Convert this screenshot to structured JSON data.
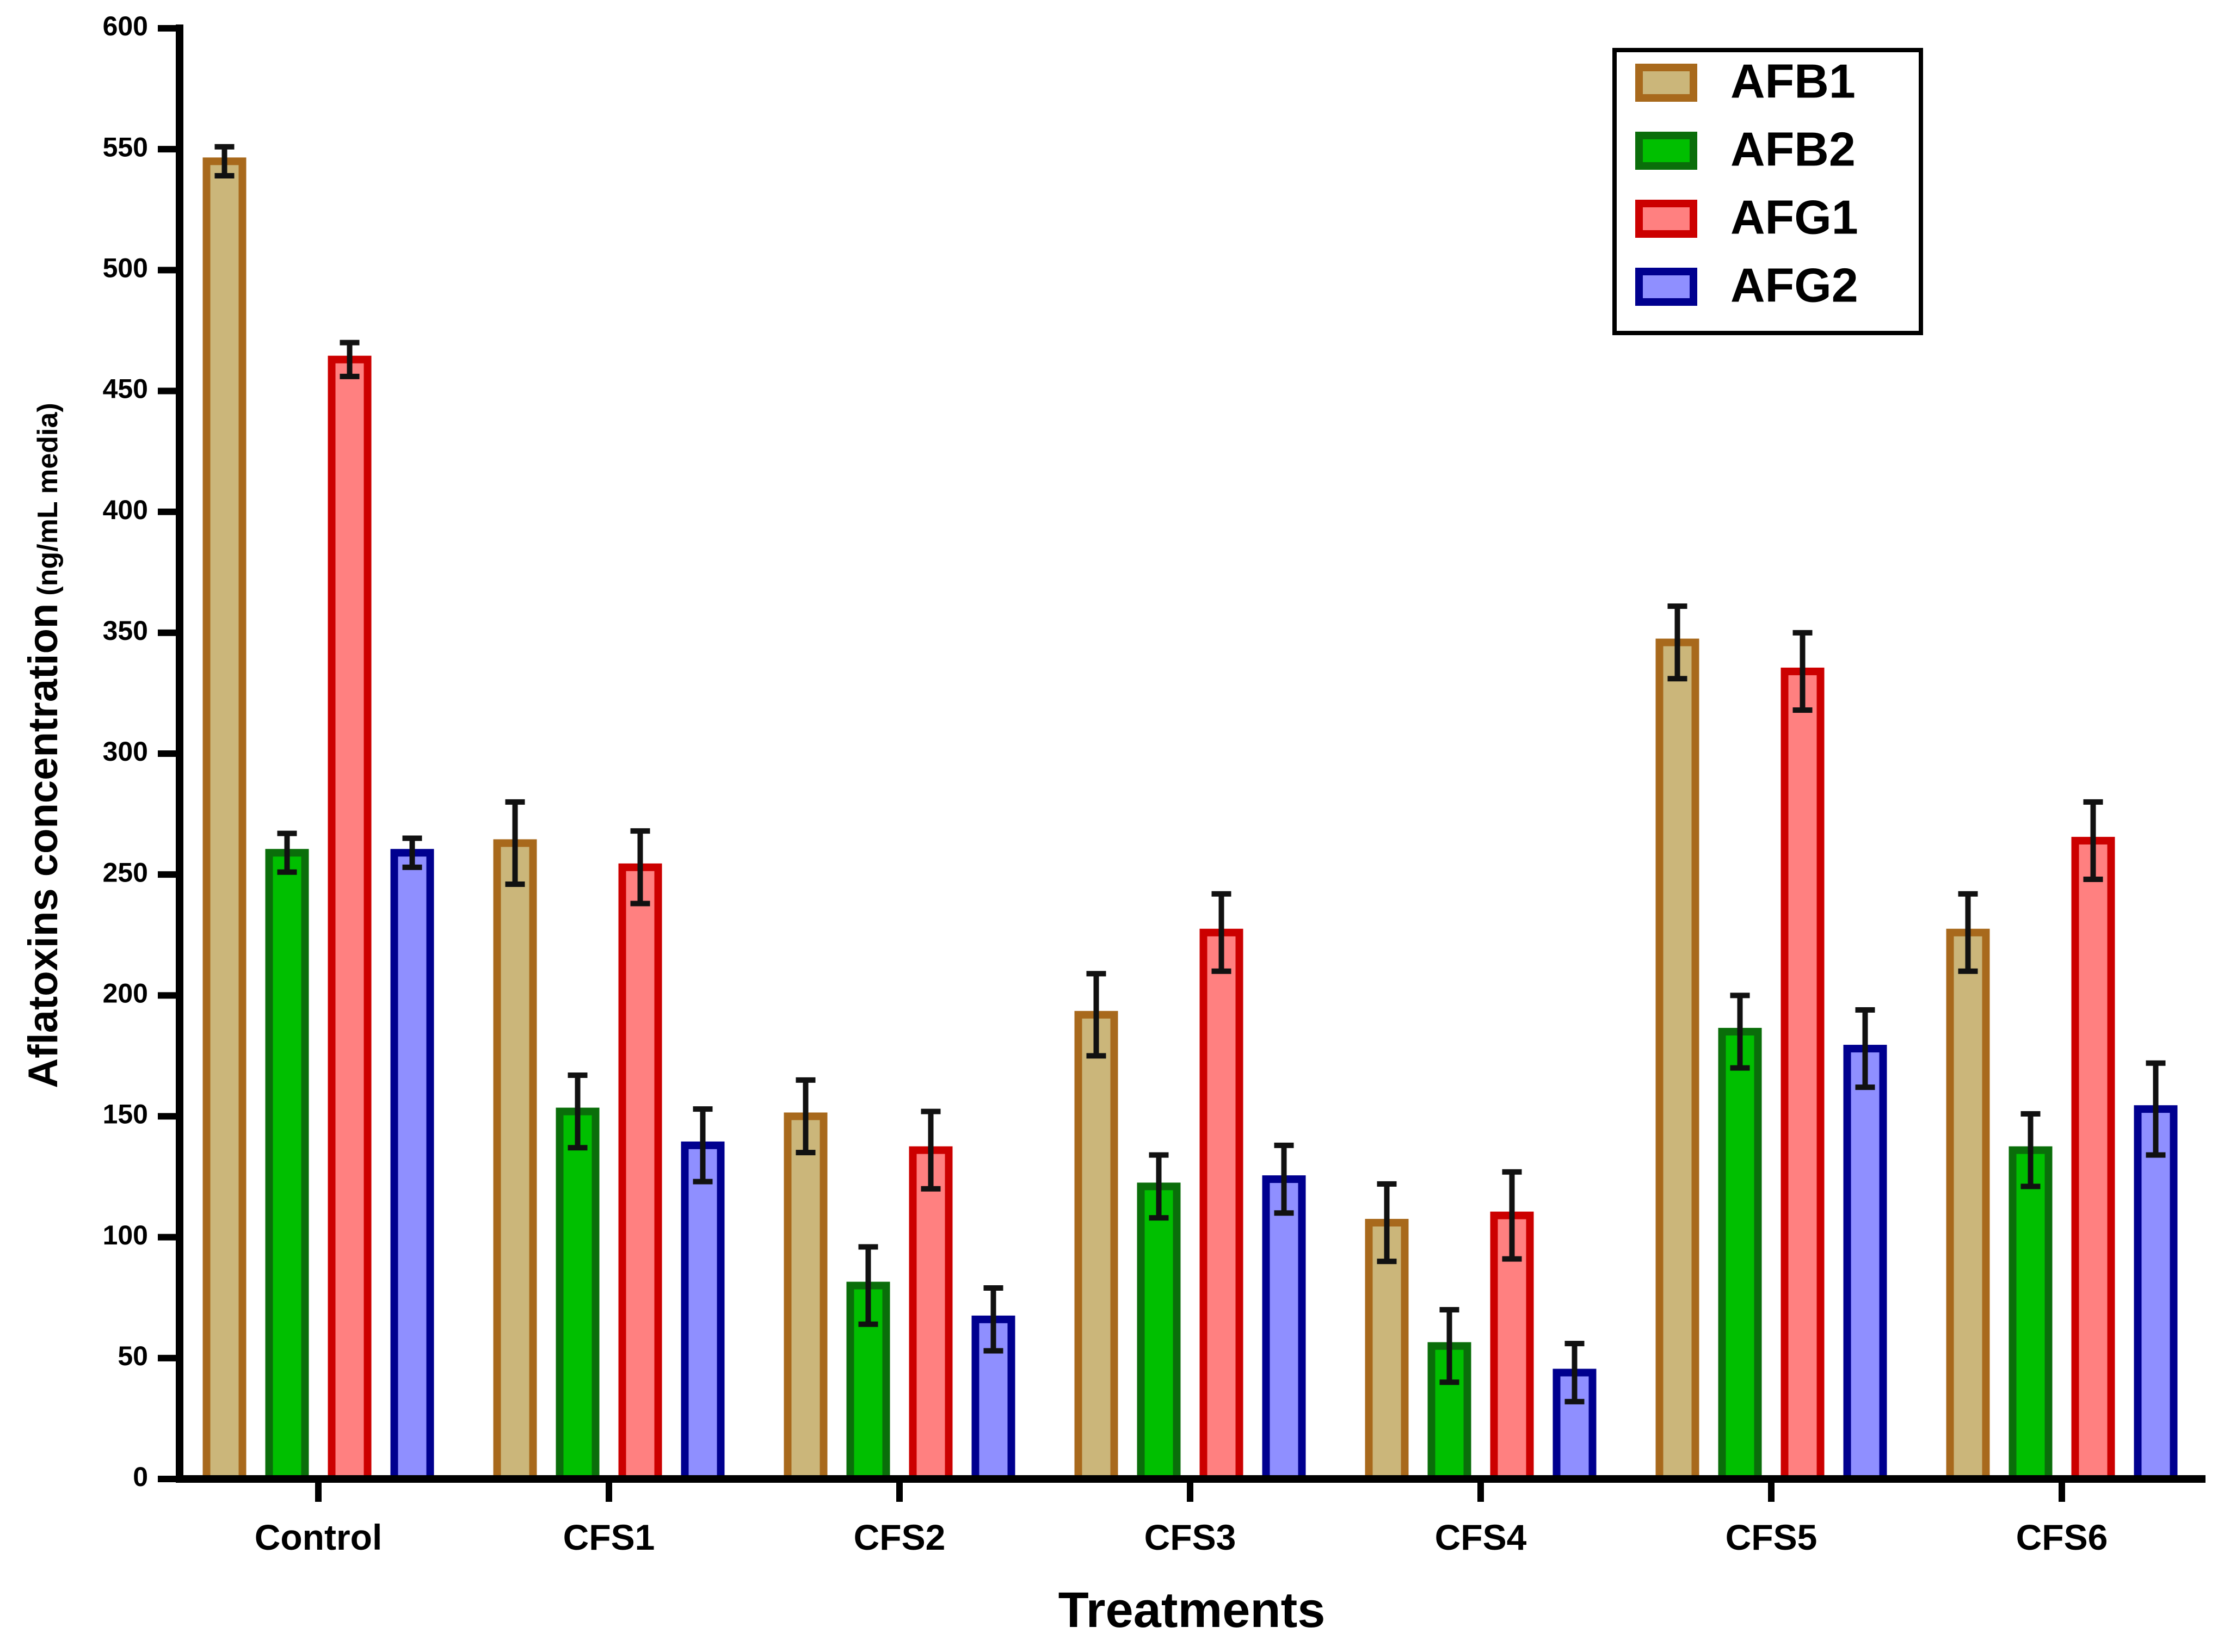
{
  "chart_data": {
    "type": "bar",
    "title": "",
    "xlabel": "Treatments",
    "ylabel": "Aflatoxins concentration",
    "ylabel_unit": "(ng/mL media)",
    "ylim": [
      0,
      600
    ],
    "yticks": [
      0,
      50,
      100,
      150,
      200,
      250,
      300,
      350,
      400,
      450,
      500,
      550,
      600
    ],
    "categories": [
      "Control",
      "CFS1",
      "CFS2",
      "CFS3",
      "CFS4",
      "CFS5",
      "CFS6"
    ],
    "legend_position": "top-right",
    "series": [
      {
        "name": "AFB1",
        "fill": "#cbb67a",
        "stroke": "#a8691c",
        "values": [
          545,
          263,
          150,
          192,
          106,
          346,
          226
        ],
        "errors": [
          6,
          17,
          15,
          17,
          16,
          15,
          16
        ]
      },
      {
        "name": "AFB2",
        "fill": "#00bf00",
        "stroke": "#0a6e0a",
        "values": [
          259,
          152,
          80,
          121,
          55,
          185,
          136
        ],
        "errors": [
          8,
          15,
          16,
          13,
          15,
          15,
          15
        ]
      },
      {
        "name": "AFG1",
        "fill": "#ff8080",
        "stroke": "#cc0000",
        "values": [
          463,
          253,
          136,
          226,
          109,
          334,
          264
        ],
        "errors": [
          7,
          15,
          16,
          16,
          18,
          16,
          16
        ]
      },
      {
        "name": "AFG2",
        "fill": "#8f8fff",
        "stroke": "#00008f",
        "values": [
          259,
          138,
          66,
          124,
          44,
          178,
          153
        ],
        "errors": [
          6,
          15,
          13,
          14,
          12,
          16,
          19
        ]
      }
    ]
  }
}
